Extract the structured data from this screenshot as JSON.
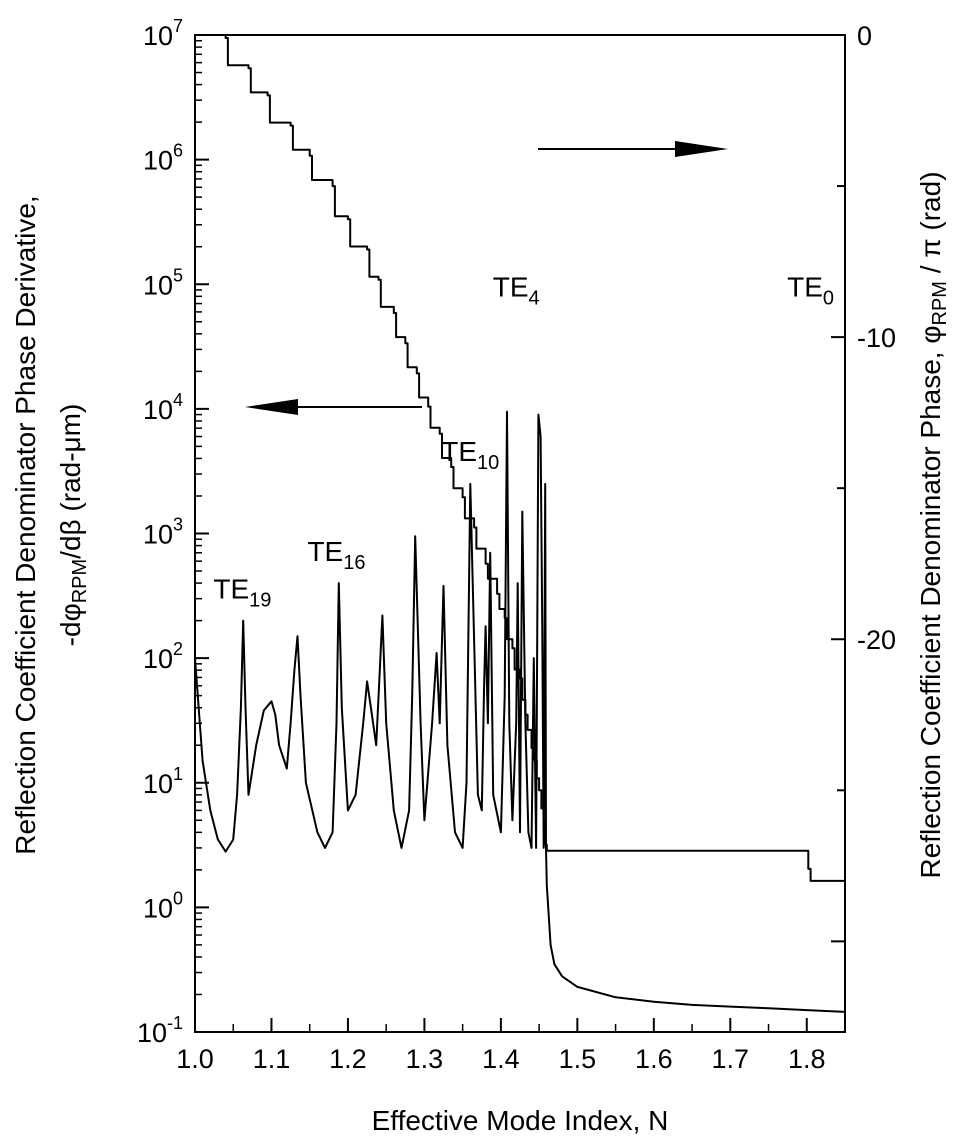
{
  "chart_data": {
    "type": "line",
    "xlabel": "Effective Mode Index, N",
    "ylabel_left": {
      "line1": "Reflection Coefficient Denominator Phase Derivative,",
      "line2_prefix": "-dφ",
      "line2_sub": "RPM",
      "line2_suffix": "/dβ (rad-μm)"
    },
    "ylabel_right": {
      "prefix": "Reflection Coefficient Denominator Phase, φ",
      "sub": "RPM",
      "suffix": " / π  (rad)"
    },
    "xlim": [
      1.0,
      1.85
    ],
    "x_ticks": [
      "1.0",
      "1.1",
      "1.2",
      "1.3",
      "1.4",
      "1.5",
      "1.6",
      "1.7",
      "1.8"
    ],
    "y_left": {
      "scale": "log",
      "lim": [
        0.1,
        10000000
      ],
      "ticks": [
        {
          "base": "10",
          "exp": "-1"
        },
        {
          "base": "10",
          "exp": "0"
        },
        {
          "base": "10",
          "exp": "1"
        },
        {
          "base": "10",
          "exp": "2"
        },
        {
          "base": "10",
          "exp": "3"
        },
        {
          "base": "10",
          "exp": "4"
        },
        {
          "base": "10",
          "exp": "5"
        },
        {
          "base": "10",
          "exp": "6"
        },
        {
          "base": "10",
          "exp": "7"
        }
      ]
    },
    "y_right": {
      "scale": "linear",
      "lim": [
        -33,
        0
      ],
      "ticks": [
        "0",
        "-10",
        "-20"
      ]
    },
    "series": [
      {
        "axis": "left",
        "x": [
          1.0,
          1.01,
          1.02,
          1.03,
          1.04,
          1.05,
          1.055,
          1.06,
          1.063,
          1.066,
          1.07,
          1.08,
          1.09,
          1.1,
          1.105,
          1.11,
          1.12,
          1.125,
          1.13,
          1.134,
          1.138,
          1.145,
          1.16,
          1.17,
          1.18,
          1.185,
          1.188,
          1.192,
          1.2,
          1.21,
          1.22,
          1.225,
          1.23,
          1.237,
          1.245,
          1.25,
          1.26,
          1.27,
          1.28,
          1.284,
          1.288,
          1.295,
          1.3,
          1.31,
          1.316,
          1.32,
          1.325,
          1.33,
          1.34,
          1.35,
          1.355,
          1.36,
          1.37,
          1.375,
          1.378,
          1.38,
          1.383,
          1.386,
          1.39,
          1.4,
          1.405,
          1.408,
          1.411,
          1.415,
          1.42,
          1.422,
          1.425,
          1.428,
          1.432,
          1.436,
          1.44,
          1.443,
          1.446,
          1.449,
          1.452,
          1.454,
          1.456,
          1.458,
          1.459,
          1.46,
          1.465,
          1.47,
          1.48,
          1.5,
          1.55,
          1.6,
          1.65,
          1.7,
          1.75,
          1.8,
          1.85
        ],
        "y": [
          100,
          15,
          6,
          3.5,
          2.8,
          3.5,
          8,
          40,
          200,
          40,
          8,
          20,
          38,
          45,
          35,
          20,
          13,
          30,
          80,
          150,
          50,
          10,
          4,
          3,
          4,
          30,
          400,
          40,
          6,
          8,
          30,
          65,
          40,
          20,
          220,
          30,
          6,
          3,
          6,
          50,
          950,
          30,
          5,
          30,
          110,
          30,
          380,
          20,
          4,
          3,
          10,
          2500,
          8,
          6,
          60,
          180,
          30,
          700,
          8,
          4,
          50,
          9500,
          30,
          5,
          30,
          400,
          4,
          1500,
          30,
          4,
          3,
          100,
          3,
          9000,
          6000,
          200,
          3,
          2500,
          3,
          1.5,
          0.5,
          0.35,
          0.28,
          0.23,
          0.19,
          0.175,
          0.165,
          0.16,
          0.155,
          0.15,
          0.145
        ]
      },
      {
        "axis": "right",
        "x": [
          1.0,
          1.04,
          1.043,
          1.07,
          1.073,
          1.095,
          1.098,
          1.125,
          1.128,
          1.15,
          1.153,
          1.18,
          1.183,
          1.2,
          1.203,
          1.225,
          1.228,
          1.24,
          1.243,
          1.26,
          1.263,
          1.275,
          1.278,
          1.29,
          1.293,
          1.305,
          1.308,
          1.32,
          1.323,
          1.335,
          1.338,
          1.35,
          1.353,
          1.365,
          1.368,
          1.38,
          1.383,
          1.395,
          1.398,
          1.405,
          1.408,
          1.415,
          1.418,
          1.425,
          1.428,
          1.432,
          1.435,
          1.44,
          1.443,
          1.447,
          1.45,
          1.453,
          1.456,
          1.458,
          1.46,
          1.8,
          1.802,
          1.805,
          1.85
        ],
        "y": [
          0,
          -0.1,
          -1.0,
          -1.1,
          -1.9,
          -2.0,
          -2.9,
          -3.0,
          -3.8,
          -4.0,
          -4.8,
          -5.0,
          -6.0,
          -6.1,
          -7.0,
          -7.1,
          -8.0,
          -8.1,
          -9.0,
          -9.2,
          -10.0,
          -10.2,
          -11.0,
          -11.2,
          -12.0,
          -12.3,
          -13.0,
          -13.2,
          -14.0,
          -14.3,
          -15.0,
          -15.3,
          -16.0,
          -16.3,
          -17.0,
          -17.5,
          -18.0,
          -18.5,
          -19.0,
          -19.3,
          -20.0,
          -20.3,
          -21.0,
          -21.3,
          -22.0,
          -22.5,
          -23.0,
          -23.6,
          -24.0,
          -24.6,
          -25.0,
          -25.6,
          -26.0,
          -26.8,
          -27.0,
          -27.0,
          -27.6,
          -28.0,
          -28.0
        ]
      }
    ],
    "annotations": [
      {
        "id": "te19",
        "base": "TE",
        "sub": "19",
        "x": 1.062,
        "y": 300
      },
      {
        "id": "te16",
        "base": "TE",
        "sub": "16",
        "x": 1.185,
        "y": 600
      },
      {
        "id": "te10",
        "base": "TE",
        "sub": "10",
        "x": 1.36,
        "y": 3800
      },
      {
        "id": "te4",
        "base": "TE",
        "sub": "4",
        "x": 1.42,
        "y": 80000
      },
      {
        "id": "te0",
        "base": "TE",
        "sub": "0",
        "x": 1.805,
        "y": 80000
      }
    ]
  }
}
